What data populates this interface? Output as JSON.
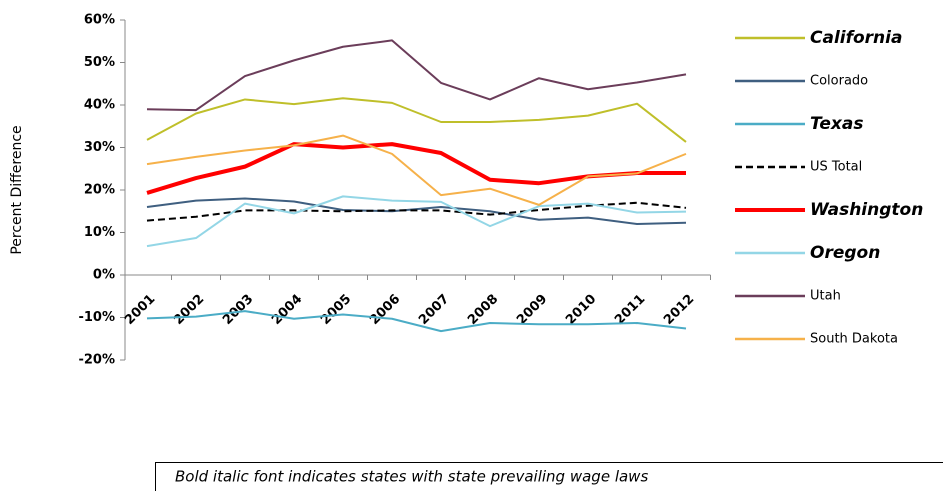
{
  "chart_data": {
    "type": "line",
    "y_label": "Percent Difference",
    "note": "Bold italic font indicates states with state prevailing wage laws",
    "categories": [
      "2001",
      "2002",
      "2003",
      "2004",
      "2005",
      "2006",
      "2007",
      "2008",
      "2009",
      "2010",
      "2011",
      "2012"
    ],
    "ylim": [
      -20,
      60
    ],
    "yticks": [
      {
        "value": -20,
        "label": "-20%"
      },
      {
        "value": -10,
        "label": "-10%"
      },
      {
        "value": 0,
        "label": "0%"
      },
      {
        "value": 10,
        "label": "10%"
      },
      {
        "value": 20,
        "label": "20%"
      },
      {
        "value": 30,
        "label": "30%"
      },
      {
        "value": 40,
        "label": "40%"
      },
      {
        "value": 50,
        "label": "50%"
      },
      {
        "value": 60,
        "label": "60%"
      }
    ],
    "grid": false,
    "series": [
      {
        "name": "California",
        "color": "#bfbf2a",
        "bold_italic": true,
        "values": [
          31.8,
          38,
          41.3,
          40.2,
          41.6,
          40.5,
          36,
          36,
          36.5,
          37.5,
          40.3,
          31.3
        ]
      },
      {
        "name": "Colorado",
        "color": "#3f5f80",
        "values": [
          16,
          17.5,
          18,
          17.3,
          15.3,
          15,
          16,
          15,
          13,
          13.5,
          12,
          12.3
        ]
      },
      {
        "name": "Texas",
        "color": "#4bacc6",
        "bold_italic": true,
        "values": [
          -10.2,
          -9.8,
          -8.5,
          -10.3,
          -9.3,
          -10.3,
          -13.2,
          -11.3,
          -11.6,
          -11.6,
          -11.3,
          -12.6
        ]
      },
      {
        "name": "US Total",
        "color": "#000000",
        "dashed": true,
        "values": [
          12.8,
          13.7,
          15.2,
          15.2,
          15,
          15.2,
          15.2,
          14.2,
          15.3,
          16.3,
          17,
          15.8
        ]
      },
      {
        "name": "Washington",
        "color": "#ff0000",
        "bold_italic": true,
        "line_width": 4,
        "values": [
          19.3,
          22.8,
          25.5,
          30.8,
          30,
          30.8,
          28.7,
          22.4,
          21.6,
          23.2,
          24,
          24
        ]
      },
      {
        "name": "Oregon",
        "color": "#93d6e6",
        "bold_italic": true,
        "values": [
          6.8,
          8.7,
          16.8,
          14.5,
          18.5,
          17.5,
          17.2,
          11.5,
          16.2,
          16.8,
          14.7,
          14.9
        ]
      },
      {
        "name": "Utah",
        "color": "#6b3d5a",
        "values": [
          39,
          38.8,
          46.8,
          50.5,
          53.7,
          55.2,
          45.2,
          41.3,
          46.3,
          43.7,
          45.3,
          47.2
        ]
      },
      {
        "name": "South Dakota",
        "color": "#f6b14a",
        "values": [
          26.1,
          27.8,
          29.3,
          30.5,
          32.8,
          28.5,
          18.8,
          20.3,
          16.5,
          23.2,
          23.9,
          28.5
        ]
      }
    ]
  }
}
